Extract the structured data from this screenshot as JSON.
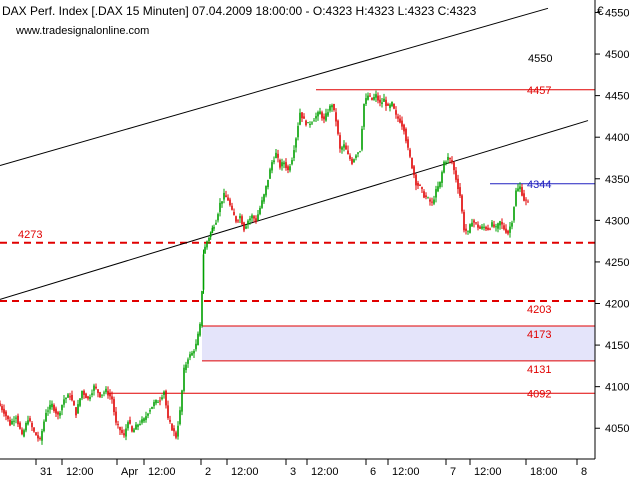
{
  "header": {
    "title": "DAX Perf. Index [.DAX  15 Minuten] 07.04.2009 18:00:00 - O:4323 H:4323 L:4323 C:4323",
    "watermark": "www.tradesignalonline.com",
    "currency": "€"
  },
  "chart_data": {
    "type": "candlestick",
    "title": "DAX Perf. Index [.DAX  15 Minuten]",
    "ylim": [
      4013,
      4565
    ],
    "y_ticks": [
      4050,
      4100,
      4150,
      4200,
      4250,
      4300,
      4350,
      4400,
      4450,
      4500,
      4550
    ],
    "x_ticks": [
      "31",
      "12:00",
      "Apr",
      "12:00",
      "2",
      "12:00",
      "3",
      "12:00",
      "6",
      "12:00",
      "7",
      "12:00",
      "18:00",
      "8"
    ],
    "price_path": [
      [
        0,
        4080
      ],
      [
        6,
        4070
      ],
      [
        12,
        4055
      ],
      [
        18,
        4065
      ],
      [
        24,
        4040
      ],
      [
        30,
        4062
      ],
      [
        36,
        4045
      ],
      [
        42,
        4035
      ],
      [
        48,
        4070
      ],
      [
        54,
        4078
      ],
      [
        60,
        4065
      ],
      [
        66,
        4085
      ],
      [
        72,
        4090
      ],
      [
        78,
        4068
      ],
      [
        84,
        4095
      ],
      [
        90,
        4085
      ],
      [
        96,
        4100
      ],
      [
        102,
        4090
      ],
      [
        108,
        4095
      ],
      [
        114,
        4085
      ],
      [
        118,
        4055
      ],
      [
        122,
        4048
      ],
      [
        126,
        4040
      ],
      [
        130,
        4060
      ],
      [
        134,
        4045
      ],
      [
        140,
        4055
      ],
      [
        146,
        4060
      ],
      [
        150,
        4070
      ],
      [
        156,
        4080
      ],
      [
        162,
        4085
      ],
      [
        166,
        4095
      ],
      [
        170,
        4060
      ],
      [
        174,
        4050
      ],
      [
        178,
        4040
      ],
      [
        182,
        4070
      ],
      [
        186,
        4120
      ],
      [
        190,
        4135
      ],
      [
        194,
        4140
      ],
      [
        198,
        4150
      ],
      [
        202,
        4173
      ],
      [
        205,
        4260
      ],
      [
        209,
        4275
      ],
      [
        214,
        4290
      ],
      [
        218,
        4300
      ],
      [
        222,
        4320
      ],
      [
        226,
        4330
      ],
      [
        230,
        4325
      ],
      [
        234,
        4310
      ],
      [
        238,
        4300
      ],
      [
        242,
        4305
      ],
      [
        246,
        4290
      ],
      [
        250,
        4300
      ],
      [
        254,
        4305
      ],
      [
        258,
        4300
      ],
      [
        262,
        4315
      ],
      [
        266,
        4330
      ],
      [
        270,
        4350
      ],
      [
        274,
        4370
      ],
      [
        278,
        4380
      ],
      [
        282,
        4365
      ],
      [
        286,
        4370
      ],
      [
        290,
        4360
      ],
      [
        294,
        4375
      ],
      [
        298,
        4400
      ],
      [
        302,
        4430
      ],
      [
        306,
        4420
      ],
      [
        310,
        4415
      ],
      [
        314,
        4420
      ],
      [
        318,
        4425
      ],
      [
        322,
        4430
      ],
      [
        326,
        4420
      ],
      [
        330,
        4432
      ],
      [
        334,
        4440
      ],
      [
        338,
        4420
      ],
      [
        342,
        4385
      ],
      [
        346,
        4390
      ],
      [
        350,
        4378
      ],
      [
        354,
        4370
      ],
      [
        358,
        4380
      ],
      [
        362,
        4385
      ],
      [
        366,
        4440
      ],
      [
        370,
        4450
      ],
      [
        374,
        4445
      ],
      [
        378,
        4450
      ],
      [
        382,
        4440
      ],
      [
        386,
        4445
      ],
      [
        390,
        4435
      ],
      [
        394,
        4440
      ],
      [
        398,
        4425
      ],
      [
        402,
        4420
      ],
      [
        406,
        4410
      ],
      [
        410,
        4385
      ],
      [
        414,
        4365
      ],
      [
        418,
        4345
      ],
      [
        422,
        4340
      ],
      [
        426,
        4330
      ],
      [
        430,
        4325
      ],
      [
        434,
        4320
      ],
      [
        438,
        4335
      ],
      [
        442,
        4345
      ],
      [
        446,
        4370
      ],
      [
        450,
        4375
      ],
      [
        454,
        4370
      ],
      [
        458,
        4350
      ],
      [
        462,
        4330
      ],
      [
        466,
        4290
      ],
      [
        470,
        4285
      ],
      [
        474,
        4300
      ],
      [
        478,
        4295
      ],
      [
        482,
        4290
      ],
      [
        486,
        4292
      ],
      [
        490,
        4290
      ],
      [
        494,
        4295
      ],
      [
        498,
        4290
      ],
      [
        502,
        4298
      ],
      [
        506,
        4290
      ],
      [
        510,
        4285
      ],
      [
        514,
        4300
      ],
      [
        518,
        4335
      ],
      [
        522,
        4340
      ],
      [
        526,
        4325
      ],
      [
        530,
        4320
      ]
    ],
    "channel_upper": {
      "x": [
        0,
        548
      ],
      "y": [
        4366,
        4555
      ]
    },
    "channel_lower": {
      "x": [
        0,
        588
      ],
      "y": [
        4205,
        4420
      ]
    },
    "levels": [
      {
        "label": "4273",
        "value": 4273,
        "style": "dashed",
        "color": "#e00000",
        "label_side": "left"
      },
      {
        "label": "4203",
        "value": 4203,
        "style": "dashed",
        "color": "#e00000",
        "label_side": "right"
      },
      {
        "label": "4457",
        "value": 4457,
        "style": "solid",
        "color": "#e00000",
        "label_side": "right",
        "from_x": 316
      },
      {
        "label": "4173",
        "value": 4173,
        "style": "solid",
        "color": "#e00000",
        "label_side": "right",
        "from_x": 202
      },
      {
        "label": "4131",
        "value": 4131,
        "style": "solid",
        "color": "#e00000",
        "label_side": "right-below",
        "from_x": 202
      },
      {
        "label": "4092",
        "value": 4092,
        "style": "solid",
        "color": "#e00000",
        "label_side": "right",
        "from_x": 108
      },
      {
        "label": "4344",
        "value": 4344,
        "style": "solid",
        "color": "#2020c0",
        "label_side": "right",
        "from_x": 490
      }
    ],
    "channel_label": "4550",
    "gap_zone": {
      "from": 4131,
      "to": 4173,
      "color": "#e4e4fa"
    },
    "colors": {
      "up": "#00a000",
      "down": "#e00000",
      "line": "#000000",
      "axis": "#000000"
    }
  }
}
